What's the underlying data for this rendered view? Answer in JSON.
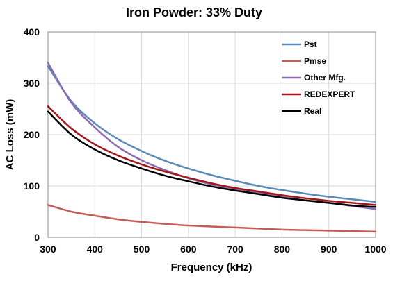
{
  "chart_data": {
    "type": "line",
    "title": "Iron Powder: 33% Duty",
    "xlabel": "Frequency (kHz)",
    "ylabel": "AC Loss (mW)",
    "xlim": [
      300,
      1000
    ],
    "ylim": [
      0,
      400
    ],
    "x_ticks": [
      300,
      400,
      500,
      600,
      700,
      800,
      900,
      1000
    ],
    "y_ticks": [
      0,
      100,
      200,
      300,
      400
    ],
    "grid": "on",
    "legend_position": "top-right",
    "x": [
      300,
      350,
      400,
      450,
      500,
      550,
      600,
      650,
      700,
      750,
      800,
      850,
      900,
      950,
      1000
    ],
    "series": [
      {
        "name": "Pst",
        "color": "#5b89b8",
        "values": [
          333,
          265,
          222,
          191,
          168,
          149,
          134,
          121,
          110,
          100,
          92,
          85,
          79,
          74,
          69
        ]
      },
      {
        "name": "Pmse",
        "color": "#c45c58",
        "values": [
          63,
          50,
          42,
          35,
          30,
          26,
          23,
          21,
          19,
          17,
          15,
          14,
          13,
          12,
          11
        ]
      },
      {
        "name": "Other Mfg.",
        "color": "#8c6bb0",
        "values": [
          340,
          262,
          214,
          176,
          150,
          131,
          115,
          103,
          94,
          86,
          79,
          72,
          67,
          61,
          55
        ]
      },
      {
        "name": "REDEXPERT",
        "color": "#a3161a",
        "values": [
          255,
          212,
          181,
          159,
          142,
          128,
          116,
          105,
          96,
          89,
          82,
          76,
          71,
          67,
          63
        ]
      },
      {
        "name": "Real",
        "color": "#000000",
        "values": [
          245,
          200,
          171,
          150,
          134,
          120,
          109,
          99,
          91,
          84,
          77,
          72,
          67,
          62,
          59
        ]
      }
    ]
  }
}
